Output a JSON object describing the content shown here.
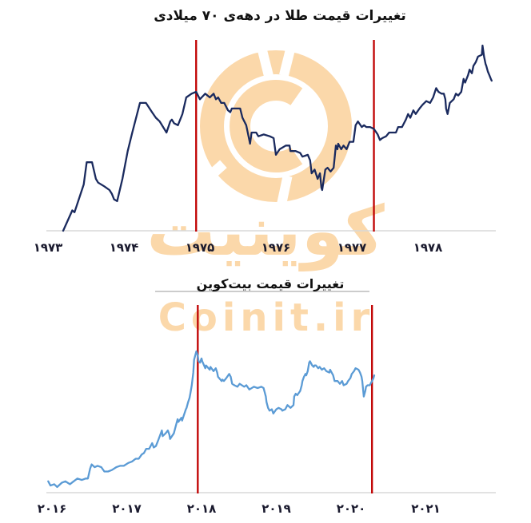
{
  "page": {
    "background": "#FFFFFF"
  },
  "watermark": {
    "logo_icon": "coinit-coin-logo",
    "text_fa": "کوینیت",
    "text_en": "Coinit.ir",
    "color": "#FBD8AA"
  },
  "chart_data": [
    {
      "id": "gold",
      "type": "line",
      "title": "تغییرات قیمت طلا در دهه‌ی ۷۰ میلادی",
      "xlabel": "",
      "ylabel": "",
      "y_axis_note": "unlabeled relative price index, 0-100 of decade peak",
      "grid": false,
      "legend": "none",
      "line_color": "#1A2A5E",
      "vline_color": "#C00000",
      "axis_color": "#D8D8D8",
      "tick_labels": [
        "۱۹۷۳",
        "۱۹۷۴",
        "۱۹۷۵",
        "۱۹۷۶",
        "۱۹۷۷",
        "۱۹۷۸"
      ],
      "tick_years": [
        1973,
        1974,
        1975,
        1976,
        1977,
        1978
      ],
      "vlines_years": [
        1974.95,
        1977.29
      ],
      "xlim": [
        1972.9,
        1978.95
      ],
      "ylim": [
        0,
        105
      ],
      "points": [
        [
          1973.2,
          0
        ],
        [
          1973.32,
          11
        ],
        [
          1973.35,
          10
        ],
        [
          1973.47,
          25
        ],
        [
          1973.51,
          37
        ],
        [
          1973.58,
          37
        ],
        [
          1973.63,
          28
        ],
        [
          1973.66,
          26
        ],
        [
          1973.74,
          24
        ],
        [
          1973.81,
          22
        ],
        [
          1973.84,
          20
        ],
        [
          1973.87,
          17
        ],
        [
          1973.91,
          16
        ],
        [
          1973.98,
          28
        ],
        [
          1974.05,
          43
        ],
        [
          1974.11,
          53
        ],
        [
          1974.21,
          69
        ],
        [
          1974.26,
          69
        ],
        [
          1974.29,
          69
        ],
        [
          1974.37,
          64
        ],
        [
          1974.42,
          61
        ],
        [
          1974.47,
          59
        ],
        [
          1974.56,
          53
        ],
        [
          1974.61,
          59
        ],
        [
          1974.63,
          60
        ],
        [
          1974.66,
          58
        ],
        [
          1974.71,
          57
        ],
        [
          1974.77,
          63
        ],
        [
          1974.82,
          72
        ],
        [
          1974.89,
          74
        ],
        [
          1974.95,
          75
        ],
        [
          1975.0,
          71
        ],
        [
          1975.07,
          74
        ],
        [
          1975.13,
          72
        ],
        [
          1975.18,
          74
        ],
        [
          1975.21,
          71
        ],
        [
          1975.24,
          72
        ],
        [
          1975.28,
          69
        ],
        [
          1975.32,
          69
        ],
        [
          1975.37,
          65
        ],
        [
          1975.4,
          64
        ],
        [
          1975.42,
          66
        ],
        [
          1975.53,
          66
        ],
        [
          1975.56,
          61
        ],
        [
          1975.61,
          57
        ],
        [
          1975.66,
          47
        ],
        [
          1975.68,
          53
        ],
        [
          1975.74,
          53
        ],
        [
          1975.77,
          51
        ],
        [
          1975.84,
          52
        ],
        [
          1975.92,
          51
        ],
        [
          1975.97,
          50
        ],
        [
          1976.0,
          41
        ],
        [
          1976.05,
          44
        ],
        [
          1976.13,
          46
        ],
        [
          1976.18,
          46
        ],
        [
          1976.19,
          43
        ],
        [
          1976.26,
          43
        ],
        [
          1976.32,
          42
        ],
        [
          1976.35,
          40
        ],
        [
          1976.42,
          41
        ],
        [
          1976.45,
          38
        ],
        [
          1976.47,
          31
        ],
        [
          1976.51,
          33
        ],
        [
          1976.55,
          28
        ],
        [
          1976.58,
          31
        ],
        [
          1976.6,
          23
        ],
        [
          1976.61,
          22
        ],
        [
          1976.65,
          33
        ],
        [
          1976.68,
          34
        ],
        [
          1976.72,
          32
        ],
        [
          1976.76,
          34
        ],
        [
          1976.79,
          46
        ],
        [
          1976.81,
          44
        ],
        [
          1976.82,
          47
        ],
        [
          1976.86,
          44
        ],
        [
          1976.89,
          46
        ],
        [
          1976.93,
          44
        ],
        [
          1976.97,
          48
        ],
        [
          1977.02,
          48
        ],
        [
          1977.05,
          57
        ],
        [
          1977.08,
          59
        ],
        [
          1977.13,
          56
        ],
        [
          1977.16,
          57
        ],
        [
          1977.19,
          56
        ],
        [
          1977.24,
          56
        ],
        [
          1977.29,
          55
        ],
        [
          1977.34,
          52
        ],
        [
          1977.37,
          49
        ],
        [
          1977.4,
          50
        ],
        [
          1977.45,
          51
        ],
        [
          1977.49,
          53
        ],
        [
          1977.53,
          53
        ],
        [
          1977.58,
          53
        ],
        [
          1977.61,
          56
        ],
        [
          1977.66,
          56
        ],
        [
          1977.71,
          60
        ],
        [
          1977.74,
          63
        ],
        [
          1977.77,
          61
        ],
        [
          1977.81,
          65
        ],
        [
          1977.84,
          63
        ],
        [
          1977.89,
          66
        ],
        [
          1977.93,
          68
        ],
        [
          1977.98,
          70
        ],
        [
          1978.03,
          69
        ],
        [
          1978.07,
          72
        ],
        [
          1978.11,
          77
        ],
        [
          1978.14,
          75
        ],
        [
          1978.18,
          74
        ],
        [
          1978.21,
          74
        ],
        [
          1978.23,
          71
        ],
        [
          1978.24,
          66
        ],
        [
          1978.26,
          63
        ],
        [
          1978.29,
          69
        ],
        [
          1978.34,
          71
        ],
        [
          1978.37,
          74
        ],
        [
          1978.4,
          73
        ],
        [
          1978.44,
          75
        ],
        [
          1978.47,
          82
        ],
        [
          1978.49,
          80
        ],
        [
          1978.53,
          84
        ],
        [
          1978.55,
          87
        ],
        [
          1978.58,
          85
        ],
        [
          1978.6,
          89
        ],
        [
          1978.63,
          91
        ],
        [
          1978.66,
          94
        ],
        [
          1978.71,
          95
        ],
        [
          1978.72,
          100
        ],
        [
          1978.74,
          94
        ],
        [
          1978.76,
          90
        ],
        [
          1978.77,
          89
        ],
        [
          1978.79,
          86
        ],
        [
          1978.81,
          84
        ],
        [
          1978.83,
          82
        ],
        [
          1978.84,
          81
        ]
      ]
    },
    {
      "id": "bitcoin",
      "type": "line",
      "title": "تغییرات قیمت بیت‌کوین",
      "xlabel": "",
      "ylabel": "",
      "y_axis_note": "unlabeled relative price index, 0-100 of 2017 peak",
      "grid": false,
      "legend": "none",
      "title_rule_color": "#CCCCCC",
      "line_color": "#5B9BD5",
      "vline_color": "#C00000",
      "axis_color": "#D8D8D8",
      "tick_labels": [
        "۲۰۱۶",
        "۲۰۱۷",
        "۲۰۱۸",
        "۲۰۱۹",
        "۲۰۲۰",
        "۲۰۲۱"
      ],
      "tick_years": [
        2016,
        2017,
        2018,
        2019,
        2020,
        2021
      ],
      "vlines_years": [
        2017.95,
        2020.28
      ],
      "xlim": [
        2015.9,
        2021.95
      ],
      "ylim": [
        0,
        105
      ],
      "points": [
        [
          2015.95,
          8
        ],
        [
          2015.98,
          5
        ],
        [
          2016.03,
          6
        ],
        [
          2016.07,
          4
        ],
        [
          2016.13,
          7
        ],
        [
          2016.18,
          8
        ],
        [
          2016.24,
          6
        ],
        [
          2016.29,
          8
        ],
        [
          2016.34,
          10
        ],
        [
          2016.4,
          9
        ],
        [
          2016.45,
          10
        ],
        [
          2016.48,
          10
        ],
        [
          2016.51,
          17
        ],
        [
          2016.53,
          20
        ],
        [
          2016.57,
          18
        ],
        [
          2016.61,
          19
        ],
        [
          2016.66,
          18
        ],
        [
          2016.7,
          15
        ],
        [
          2016.75,
          15
        ],
        [
          2016.8,
          16
        ],
        [
          2016.86,
          18
        ],
        [
          2016.91,
          19
        ],
        [
          2016.96,
          19
        ],
        [
          2017.02,
          21
        ],
        [
          2017.07,
          22
        ],
        [
          2017.12,
          24
        ],
        [
          2017.16,
          24
        ],
        [
          2017.2,
          27
        ],
        [
          2017.23,
          28
        ],
        [
          2017.26,
          31
        ],
        [
          2017.3,
          31
        ],
        [
          2017.34,
          35
        ],
        [
          2017.36,
          32
        ],
        [
          2017.39,
          33
        ],
        [
          2017.42,
          37
        ],
        [
          2017.47,
          44
        ],
        [
          2017.48,
          40
        ],
        [
          2017.52,
          42
        ],
        [
          2017.55,
          44
        ],
        [
          2017.57,
          41
        ],
        [
          2017.58,
          38
        ],
        [
          2017.63,
          42
        ],
        [
          2017.66,
          48
        ],
        [
          2017.68,
          52
        ],
        [
          2017.69,
          50
        ],
        [
          2017.73,
          53
        ],
        [
          2017.74,
          51
        ],
        [
          2017.79,
          59
        ],
        [
          2017.8,
          60
        ],
        [
          2017.82,
          64
        ],
        [
          2017.84,
          67
        ],
        [
          2017.85,
          70
        ],
        [
          2017.87,
          76
        ],
        [
          2017.89,
          85
        ],
        [
          2017.9,
          94
        ],
        [
          2017.93,
          100
        ],
        [
          2017.95,
          97
        ],
        [
          2017.96,
          93
        ],
        [
          2017.98,
          92
        ],
        [
          2018.0,
          95
        ],
        [
          2018.01,
          93
        ],
        [
          2018.05,
          88
        ],
        [
          2018.06,
          90
        ],
        [
          2018.11,
          87
        ],
        [
          2018.12,
          89
        ],
        [
          2018.16,
          86
        ],
        [
          2018.19,
          88
        ],
        [
          2018.21,
          85
        ],
        [
          2018.22,
          82
        ],
        [
          2018.27,
          79
        ],
        [
          2018.28,
          80
        ],
        [
          2018.3,
          79
        ],
        [
          2018.33,
          81
        ],
        [
          2018.37,
          84
        ],
        [
          2018.39,
          82
        ],
        [
          2018.41,
          77
        ],
        [
          2018.44,
          76
        ],
        [
          2018.48,
          75
        ],
        [
          2018.51,
          77
        ],
        [
          2018.57,
          75
        ],
        [
          2018.6,
          76
        ],
        [
          2018.64,
          73
        ],
        [
          2018.7,
          75
        ],
        [
          2018.75,
          74
        ],
        [
          2018.8,
          75
        ],
        [
          2018.83,
          74
        ],
        [
          2018.86,
          68
        ],
        [
          2018.87,
          64
        ],
        [
          2018.89,
          60
        ],
        [
          2018.91,
          58
        ],
        [
          2018.94,
          59
        ],
        [
          2018.96,
          56
        ],
        [
          2019.0,
          59
        ],
        [
          2019.03,
          60
        ],
        [
          2019.07,
          59
        ],
        [
          2019.08,
          58
        ],
        [
          2019.12,
          59
        ],
        [
          2019.15,
          62
        ],
        [
          2019.19,
          60
        ],
        [
          2019.23,
          62
        ],
        [
          2019.24,
          68
        ],
        [
          2019.26,
          70
        ],
        [
          2019.28,
          69
        ],
        [
          2019.32,
          72
        ],
        [
          2019.34,
          76
        ],
        [
          2019.35,
          79
        ],
        [
          2019.37,
          82
        ],
        [
          2019.39,
          84
        ],
        [
          2019.4,
          83
        ],
        [
          2019.42,
          86
        ],
        [
          2019.44,
          92
        ],
        [
          2019.45,
          93
        ],
        [
          2019.48,
          90
        ],
        [
          2019.5,
          89
        ],
        [
          2019.51,
          90
        ],
        [
          2019.53,
          90
        ],
        [
          2019.56,
          88
        ],
        [
          2019.58,
          89
        ],
        [
          2019.61,
          87
        ],
        [
          2019.64,
          88
        ],
        [
          2019.67,
          86
        ],
        [
          2019.71,
          85
        ],
        [
          2019.72,
          87
        ],
        [
          2019.76,
          83
        ],
        [
          2019.78,
          79
        ],
        [
          2019.8,
          79
        ],
        [
          2019.82,
          79
        ],
        [
          2019.85,
          77
        ],
        [
          2019.88,
          79
        ],
        [
          2019.9,
          76
        ],
        [
          2019.94,
          77
        ],
        [
          2019.96,
          79
        ],
        [
          2019.99,
          81
        ],
        [
          2020.01,
          84
        ],
        [
          2020.04,
          86
        ],
        [
          2020.06,
          88
        ],
        [
          2020.1,
          87
        ],
        [
          2020.12,
          85
        ],
        [
          2020.14,
          82
        ],
        [
          2020.15,
          79
        ],
        [
          2020.17,
          68
        ],
        [
          2020.19,
          72
        ],
        [
          2020.2,
          75
        ],
        [
          2020.22,
          76
        ],
        [
          2020.25,
          76
        ],
        [
          2020.26,
          77
        ],
        [
          2020.28,
          79
        ],
        [
          2020.3,
          81
        ],
        [
          2020.31,
          83
        ]
      ]
    }
  ]
}
